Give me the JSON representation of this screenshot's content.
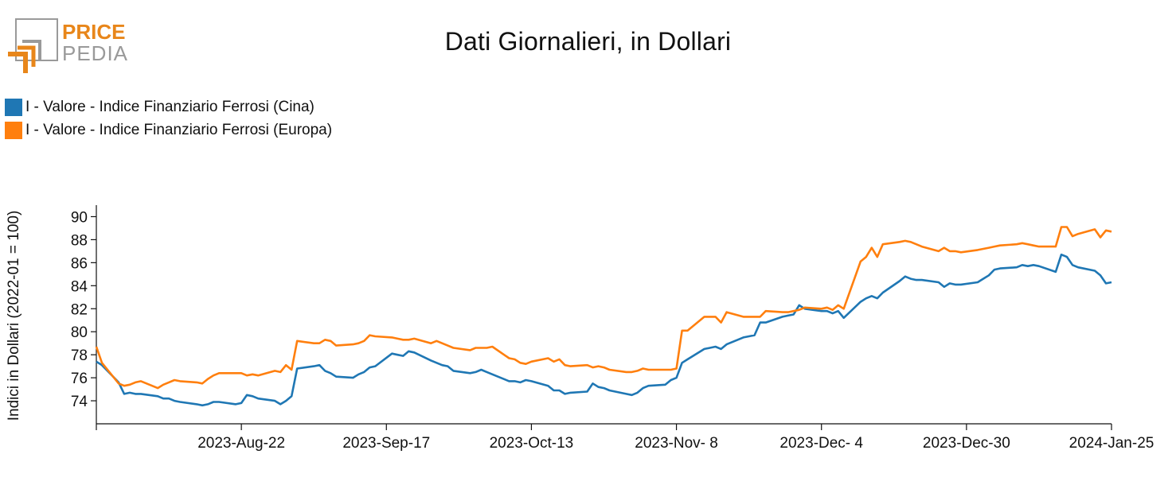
{
  "logo": {
    "word1": "PRICE",
    "word2": "PEDIA",
    "orange": "#e8861a",
    "gray": "#9a9a9a"
  },
  "title": "Dati Giornalieri, in Dollari",
  "chart_data": {
    "type": "line",
    "title": "Dati Giornalieri, in Dollari",
    "ylabel": "Indici in Dollari (2022-01 = 100)",
    "xlabel": "",
    "ylim": [
      72,
      91
    ],
    "yticks": [
      74,
      76,
      78,
      80,
      82,
      84,
      86,
      88,
      90
    ],
    "xlim": [
      "2023-07-27",
      "2024-01-25"
    ],
    "xticks": [
      {
        "date": "2023-07-27",
        "label": ""
      },
      {
        "date": "2023-08-22",
        "label": "2023-Aug-22"
      },
      {
        "date": "2023-09-17",
        "label": "2023-Sep-17"
      },
      {
        "date": "2023-10-13",
        "label": "2023-Oct-13"
      },
      {
        "date": "2023-11-08",
        "label": "2023-Nov- 8"
      },
      {
        "date": "2023-12-04",
        "label": "2023-Dec- 4"
      },
      {
        "date": "2023-12-30",
        "label": "2023-Dec-30"
      },
      {
        "date": "2024-01-25",
        "label": "2024-Jan-25"
      }
    ],
    "grid": false,
    "legend_position": "top-left",
    "series": [
      {
        "name": "I - Valore - Indice Finanziario Ferrosi (Cina)",
        "color": "#1f77b4",
        "points": [
          [
            "2023-07-27",
            77.4
          ],
          [
            "2023-07-28",
            77.1
          ],
          [
            "2023-07-31",
            75.6
          ],
          [
            "2023-08-01",
            74.6
          ],
          [
            "2023-08-02",
            74.7
          ],
          [
            "2023-08-03",
            74.6
          ],
          [
            "2023-08-04",
            74.6
          ],
          [
            "2023-08-07",
            74.4
          ],
          [
            "2023-08-08",
            74.2
          ],
          [
            "2023-08-09",
            74.2
          ],
          [
            "2023-08-10",
            74.0
          ],
          [
            "2023-08-11",
            73.9
          ],
          [
            "2023-08-14",
            73.7
          ],
          [
            "2023-08-15",
            73.6
          ],
          [
            "2023-08-16",
            73.7
          ],
          [
            "2023-08-17",
            73.9
          ],
          [
            "2023-08-18",
            73.9
          ],
          [
            "2023-08-21",
            73.7
          ],
          [
            "2023-08-22",
            73.8
          ],
          [
            "2023-08-23",
            74.5
          ],
          [
            "2023-08-24",
            74.4
          ],
          [
            "2023-08-25",
            74.2
          ],
          [
            "2023-08-28",
            74.0
          ],
          [
            "2023-08-29",
            73.7
          ],
          [
            "2023-08-30",
            74.0
          ],
          [
            "2023-08-31",
            74.4
          ],
          [
            "2023-09-01",
            76.8
          ],
          [
            "2023-09-04",
            77.0
          ],
          [
            "2023-09-05",
            77.1
          ],
          [
            "2023-09-06",
            76.6
          ],
          [
            "2023-09-07",
            76.4
          ],
          [
            "2023-09-08",
            76.1
          ],
          [
            "2023-09-11",
            76.0
          ],
          [
            "2023-09-12",
            76.3
          ],
          [
            "2023-09-13",
            76.5
          ],
          [
            "2023-09-14",
            76.9
          ],
          [
            "2023-09-15",
            77.0
          ],
          [
            "2023-09-18",
            78.1
          ],
          [
            "2023-09-19",
            78.0
          ],
          [
            "2023-09-20",
            77.9
          ],
          [
            "2023-09-21",
            78.3
          ],
          [
            "2023-09-22",
            78.2
          ],
          [
            "2023-09-25",
            77.5
          ],
          [
            "2023-09-26",
            77.3
          ],
          [
            "2023-09-27",
            77.1
          ],
          [
            "2023-09-28",
            77.0
          ],
          [
            "2023-09-29",
            76.6
          ],
          [
            "2023-10-02",
            76.4
          ],
          [
            "2023-10-03",
            76.5
          ],
          [
            "2023-10-04",
            76.7
          ],
          [
            "2023-10-05",
            76.5
          ],
          [
            "2023-10-06",
            76.3
          ],
          [
            "2023-10-09",
            75.7
          ],
          [
            "2023-10-10",
            75.7
          ],
          [
            "2023-10-11",
            75.6
          ],
          [
            "2023-10-12",
            75.8
          ],
          [
            "2023-10-13",
            75.7
          ],
          [
            "2023-10-16",
            75.3
          ],
          [
            "2023-10-17",
            74.9
          ],
          [
            "2023-10-18",
            74.9
          ],
          [
            "2023-10-19",
            74.6
          ],
          [
            "2023-10-20",
            74.7
          ],
          [
            "2023-10-23",
            74.8
          ],
          [
            "2023-10-24",
            75.5
          ],
          [
            "2023-10-25",
            75.2
          ],
          [
            "2023-10-26",
            75.1
          ],
          [
            "2023-10-27",
            74.9
          ],
          [
            "2023-10-30",
            74.6
          ],
          [
            "2023-10-31",
            74.5
          ],
          [
            "2023-11-01",
            74.7
          ],
          [
            "2023-11-02",
            75.1
          ],
          [
            "2023-11-03",
            75.3
          ],
          [
            "2023-11-06",
            75.4
          ],
          [
            "2023-11-07",
            75.8
          ],
          [
            "2023-11-08",
            76.0
          ],
          [
            "2023-11-09",
            77.3
          ],
          [
            "2023-11-10",
            77.6
          ],
          [
            "2023-11-13",
            78.5
          ],
          [
            "2023-11-14",
            78.6
          ],
          [
            "2023-11-15",
            78.7
          ],
          [
            "2023-11-16",
            78.5
          ],
          [
            "2023-11-17",
            78.9
          ],
          [
            "2023-11-20",
            79.5
          ],
          [
            "2023-11-21",
            79.6
          ],
          [
            "2023-11-22",
            79.7
          ],
          [
            "2023-11-23",
            80.8
          ],
          [
            "2023-11-24",
            80.8
          ],
          [
            "2023-11-27",
            81.3
          ],
          [
            "2023-11-28",
            81.4
          ],
          [
            "2023-11-29",
            81.5
          ],
          [
            "2023-11-30",
            82.3
          ],
          [
            "2023-12-01",
            82.0
          ],
          [
            "2023-12-04",
            81.8
          ],
          [
            "2023-12-05",
            81.8
          ],
          [
            "2023-12-06",
            81.6
          ],
          [
            "2023-12-07",
            81.8
          ],
          [
            "2023-12-08",
            81.2
          ],
          [
            "2023-12-11",
            82.6
          ],
          [
            "2023-12-12",
            82.9
          ],
          [
            "2023-12-13",
            83.1
          ],
          [
            "2023-12-14",
            82.9
          ],
          [
            "2023-12-15",
            83.4
          ],
          [
            "2023-12-18",
            84.4
          ],
          [
            "2023-12-19",
            84.8
          ],
          [
            "2023-12-20",
            84.6
          ],
          [
            "2023-12-21",
            84.5
          ],
          [
            "2023-12-22",
            84.5
          ],
          [
            "2023-12-25",
            84.3
          ],
          [
            "2023-12-26",
            83.9
          ],
          [
            "2023-12-27",
            84.2
          ],
          [
            "2023-12-28",
            84.1
          ],
          [
            "2023-12-29",
            84.1
          ],
          [
            "2024-01-01",
            84.3
          ],
          [
            "2024-01-02",
            84.6
          ],
          [
            "2024-01-03",
            84.9
          ],
          [
            "2024-01-04",
            85.4
          ],
          [
            "2024-01-05",
            85.5
          ],
          [
            "2024-01-08",
            85.6
          ],
          [
            "2024-01-09",
            85.8
          ],
          [
            "2024-01-10",
            85.7
          ],
          [
            "2024-01-11",
            85.8
          ],
          [
            "2024-01-12",
            85.7
          ],
          [
            "2024-01-15",
            85.2
          ],
          [
            "2024-01-16",
            86.7
          ],
          [
            "2024-01-17",
            86.5
          ],
          [
            "2024-01-18",
            85.8
          ],
          [
            "2024-01-19",
            85.6
          ],
          [
            "2024-01-22",
            85.3
          ],
          [
            "2024-01-23",
            84.9
          ],
          [
            "2024-01-24",
            84.2
          ],
          [
            "2024-01-25",
            84.3
          ]
        ]
      },
      {
        "name": "I - Valore - Indice Finanziario Ferrosi (Europa)",
        "color": "#ff7f0e",
        "points": [
          [
            "2023-07-27",
            78.7
          ],
          [
            "2023-07-28",
            77.3
          ],
          [
            "2023-07-31",
            75.5
          ],
          [
            "2023-08-01",
            75.3
          ],
          [
            "2023-08-02",
            75.4
          ],
          [
            "2023-08-03",
            75.6
          ],
          [
            "2023-08-04",
            75.7
          ],
          [
            "2023-08-07",
            75.1
          ],
          [
            "2023-08-08",
            75.4
          ],
          [
            "2023-08-09",
            75.6
          ],
          [
            "2023-08-10",
            75.8
          ],
          [
            "2023-08-11",
            75.7
          ],
          [
            "2023-08-14",
            75.6
          ],
          [
            "2023-08-15",
            75.5
          ],
          [
            "2023-08-16",
            75.9
          ],
          [
            "2023-08-17",
            76.2
          ],
          [
            "2023-08-18",
            76.4
          ],
          [
            "2023-08-21",
            76.4
          ],
          [
            "2023-08-22",
            76.4
          ],
          [
            "2023-08-23",
            76.2
          ],
          [
            "2023-08-24",
            76.3
          ],
          [
            "2023-08-25",
            76.2
          ],
          [
            "2023-08-28",
            76.6
          ],
          [
            "2023-08-29",
            76.5
          ],
          [
            "2023-08-30",
            77.1
          ],
          [
            "2023-08-31",
            76.7
          ],
          [
            "2023-09-01",
            79.2
          ],
          [
            "2023-09-04",
            79.0
          ],
          [
            "2023-09-05",
            79.0
          ],
          [
            "2023-09-06",
            79.3
          ],
          [
            "2023-09-07",
            79.2
          ],
          [
            "2023-09-08",
            78.8
          ],
          [
            "2023-09-11",
            78.9
          ],
          [
            "2023-09-12",
            79.0
          ],
          [
            "2023-09-13",
            79.2
          ],
          [
            "2023-09-14",
            79.7
          ],
          [
            "2023-09-15",
            79.6
          ],
          [
            "2023-09-18",
            79.5
          ],
          [
            "2023-09-19",
            79.4
          ],
          [
            "2023-09-20",
            79.3
          ],
          [
            "2023-09-21",
            79.3
          ],
          [
            "2023-09-22",
            79.4
          ],
          [
            "2023-09-25",
            79.0
          ],
          [
            "2023-09-26",
            79.2
          ],
          [
            "2023-09-27",
            79.0
          ],
          [
            "2023-09-28",
            78.8
          ],
          [
            "2023-09-29",
            78.6
          ],
          [
            "2023-10-02",
            78.4
          ],
          [
            "2023-10-03",
            78.6
          ],
          [
            "2023-10-04",
            78.6
          ],
          [
            "2023-10-05",
            78.6
          ],
          [
            "2023-10-06",
            78.7
          ],
          [
            "2023-10-09",
            77.7
          ],
          [
            "2023-10-10",
            77.6
          ],
          [
            "2023-10-11",
            77.3
          ],
          [
            "2023-10-12",
            77.2
          ],
          [
            "2023-10-13",
            77.4
          ],
          [
            "2023-10-16",
            77.7
          ],
          [
            "2023-10-17",
            77.4
          ],
          [
            "2023-10-18",
            77.6
          ],
          [
            "2023-10-19",
            77.1
          ],
          [
            "2023-10-20",
            77.0
          ],
          [
            "2023-10-23",
            77.1
          ],
          [
            "2023-10-24",
            76.9
          ],
          [
            "2023-10-25",
            77.0
          ],
          [
            "2023-10-26",
            76.9
          ],
          [
            "2023-10-27",
            76.7
          ],
          [
            "2023-10-30",
            76.5
          ],
          [
            "2023-10-31",
            76.5
          ],
          [
            "2023-11-01",
            76.6
          ],
          [
            "2023-11-02",
            76.8
          ],
          [
            "2023-11-03",
            76.7
          ],
          [
            "2023-11-06",
            76.7
          ],
          [
            "2023-11-07",
            76.7
          ],
          [
            "2023-11-08",
            76.8
          ],
          [
            "2023-11-09",
            80.1
          ],
          [
            "2023-11-10",
            80.1
          ],
          [
            "2023-11-13",
            81.3
          ],
          [
            "2023-11-14",
            81.3
          ],
          [
            "2023-11-15",
            81.3
          ],
          [
            "2023-11-16",
            80.8
          ],
          [
            "2023-11-17",
            81.7
          ],
          [
            "2023-11-20",
            81.3
          ],
          [
            "2023-11-21",
            81.3
          ],
          [
            "2023-11-22",
            81.3
          ],
          [
            "2023-11-23",
            81.3
          ],
          [
            "2023-11-24",
            81.8
          ],
          [
            "2023-11-27",
            81.7
          ],
          [
            "2023-11-28",
            81.7
          ],
          [
            "2023-11-29",
            81.8
          ],
          [
            "2023-11-30",
            81.9
          ],
          [
            "2023-12-01",
            82.1
          ],
          [
            "2023-12-04",
            82.0
          ],
          [
            "2023-12-05",
            82.1
          ],
          [
            "2023-12-06",
            81.9
          ],
          [
            "2023-12-07",
            82.3
          ],
          [
            "2023-12-08",
            82.0
          ],
          [
            "2023-12-11",
            86.1
          ],
          [
            "2023-12-12",
            86.5
          ],
          [
            "2023-12-13",
            87.3
          ],
          [
            "2023-12-14",
            86.5
          ],
          [
            "2023-12-15",
            87.6
          ],
          [
            "2023-12-18",
            87.8
          ],
          [
            "2023-12-19",
            87.9
          ],
          [
            "2023-12-20",
            87.8
          ],
          [
            "2023-12-21",
            87.6
          ],
          [
            "2023-12-22",
            87.4
          ],
          [
            "2023-12-25",
            87.0
          ],
          [
            "2023-12-26",
            87.3
          ],
          [
            "2023-12-27",
            87.0
          ],
          [
            "2023-12-28",
            87.0
          ],
          [
            "2023-12-29",
            86.9
          ],
          [
            "2024-01-01",
            87.1
          ],
          [
            "2024-01-02",
            87.2
          ],
          [
            "2024-01-03",
            87.3
          ],
          [
            "2024-01-04",
            87.4
          ],
          [
            "2024-01-05",
            87.5
          ],
          [
            "2024-01-08",
            87.6
          ],
          [
            "2024-01-09",
            87.7
          ],
          [
            "2024-01-10",
            87.6
          ],
          [
            "2024-01-11",
            87.5
          ],
          [
            "2024-01-12",
            87.4
          ],
          [
            "2024-01-15",
            87.4
          ],
          [
            "2024-01-16",
            89.1
          ],
          [
            "2024-01-17",
            89.1
          ],
          [
            "2024-01-18",
            88.3
          ],
          [
            "2024-01-19",
            88.5
          ],
          [
            "2024-01-22",
            88.9
          ],
          [
            "2024-01-23",
            88.2
          ],
          [
            "2024-01-24",
            88.8
          ],
          [
            "2024-01-25",
            88.7
          ]
        ]
      }
    ]
  }
}
